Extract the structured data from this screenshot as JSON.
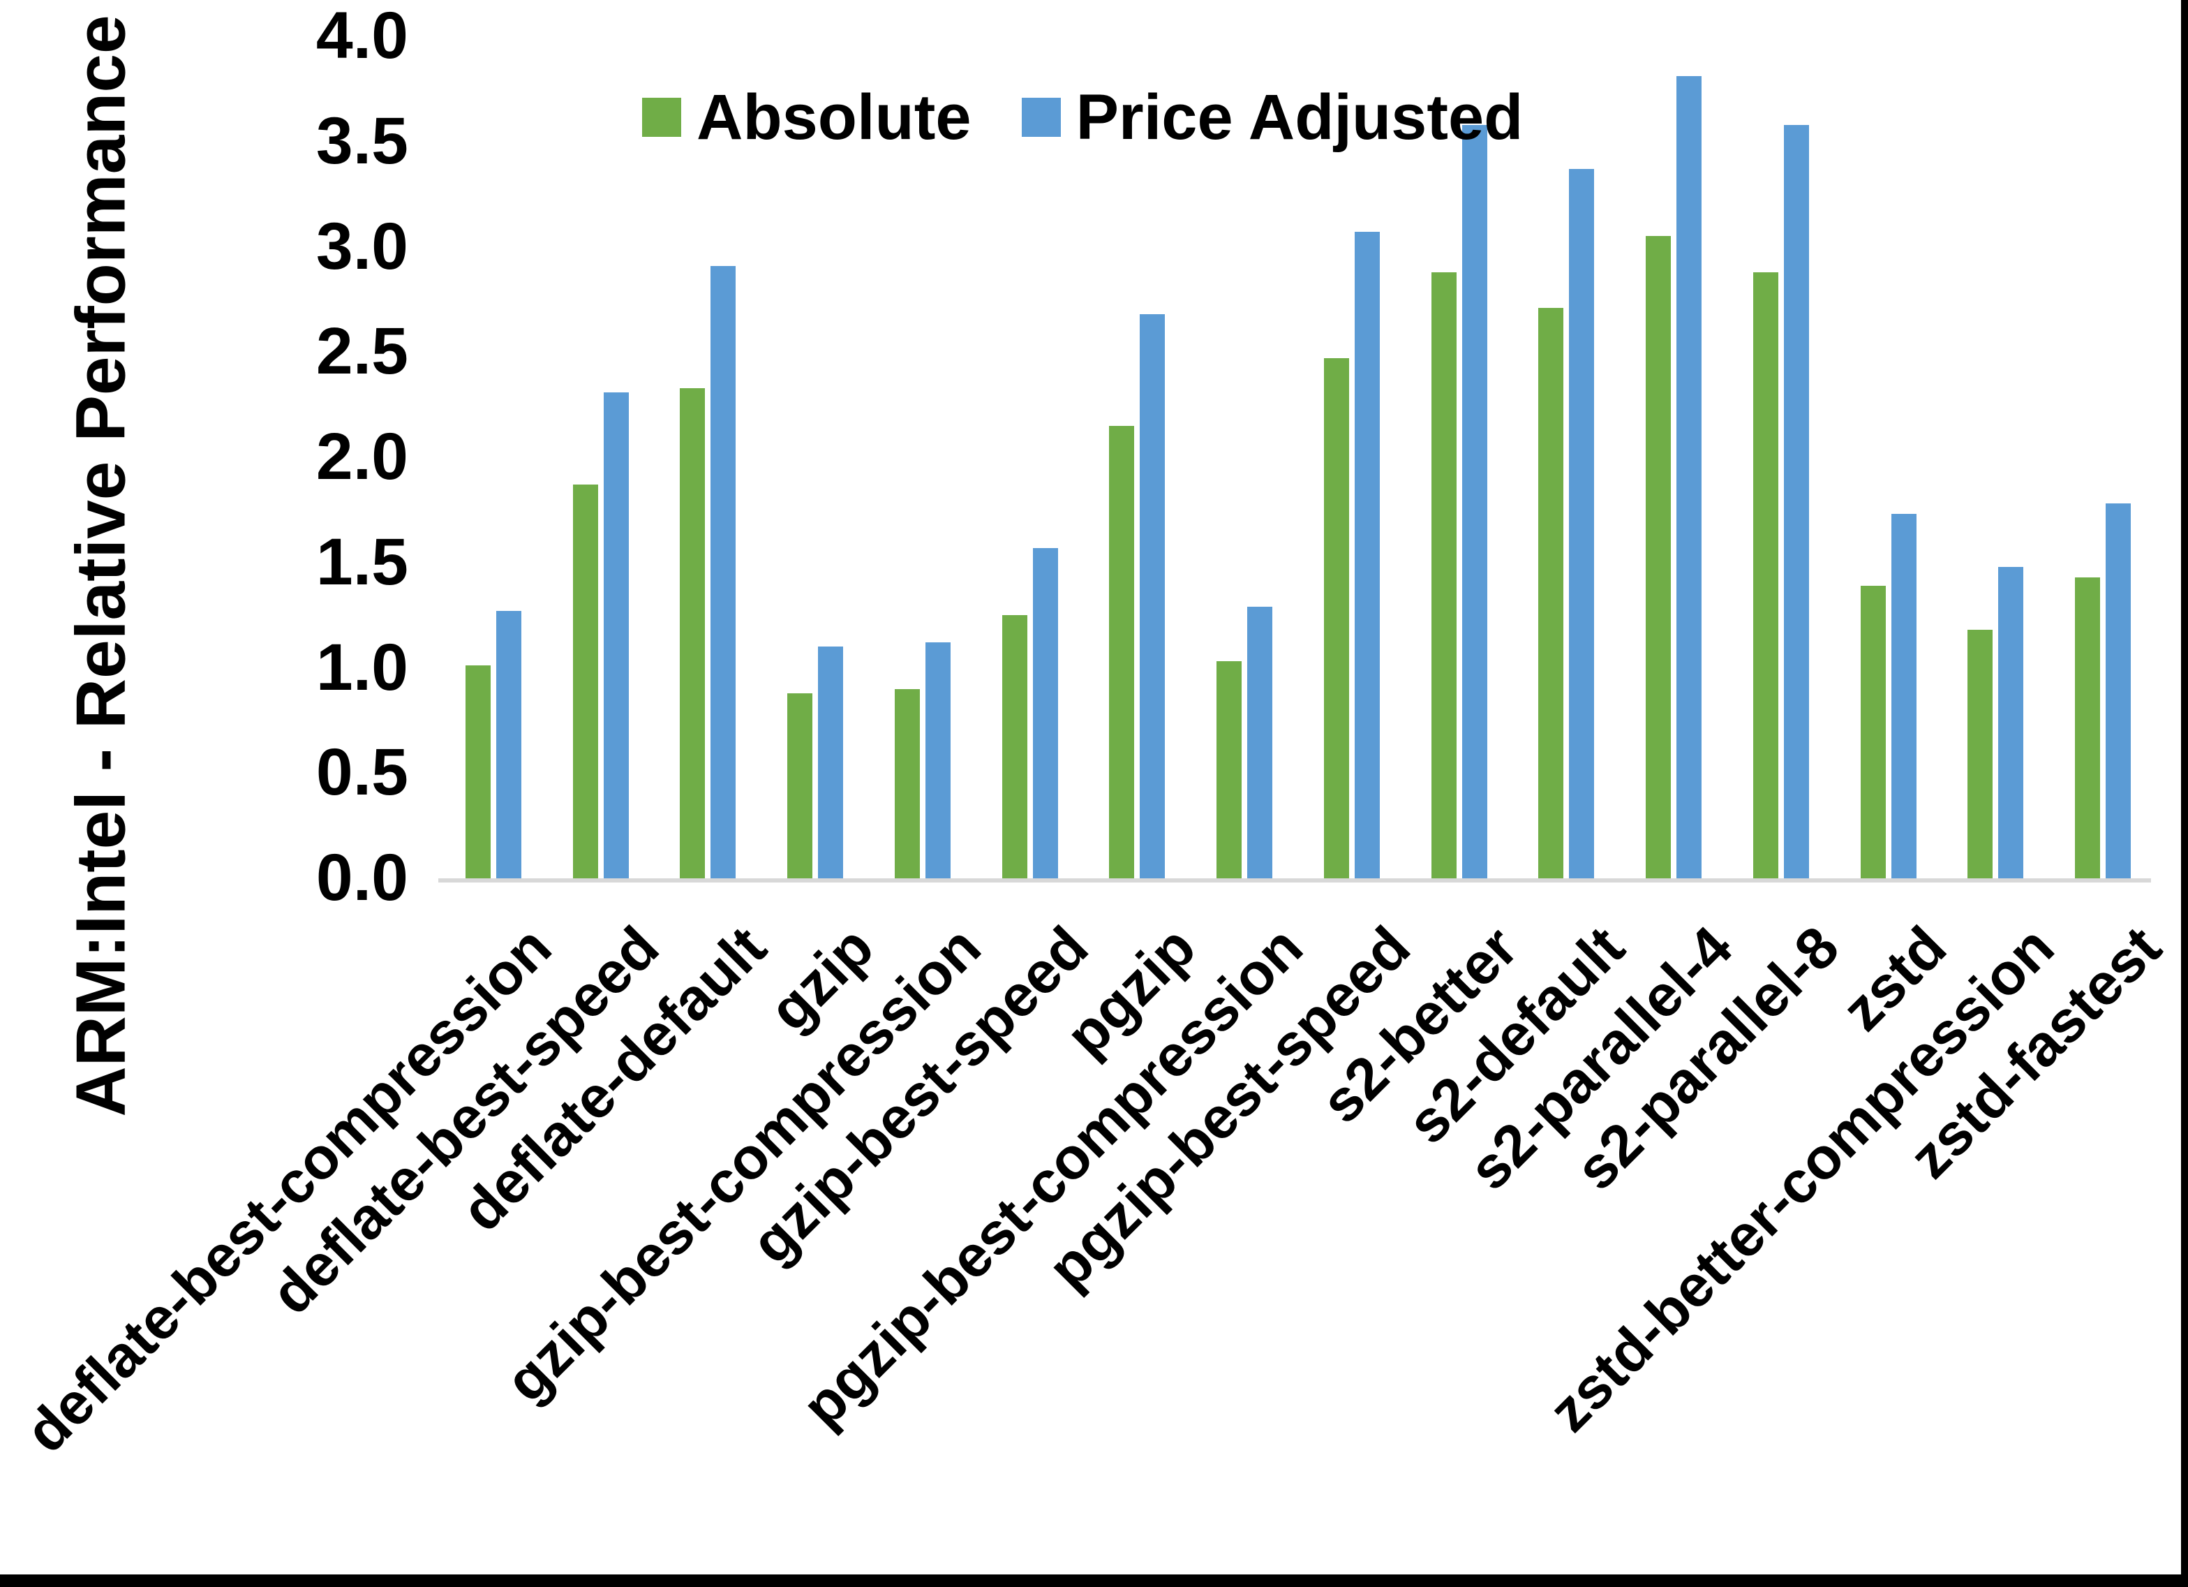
{
  "chart_data": {
    "type": "bar",
    "title": "",
    "xlabel": "",
    "ylabel": "ARM:Intel - Relative Performance",
    "ylim": [
      0.0,
      4.0
    ],
    "ytick_step": 0.5,
    "grid": false,
    "legend_position": "top-center",
    "background": "#ffffff",
    "text_color": "#000000",
    "axis_line_color": "#d8d8d8",
    "categories": [
      "deflate-best-compression",
      "deflate-best-speed",
      "deflate-default",
      "gzip",
      "gzip-best-compression",
      "gzip-best-speed",
      "pgzip",
      "pgzip-best-compression",
      "pgzip-best-speed",
      "s2-better",
      "s2-default",
      "s2-parallel-4",
      "s2-parallel-8",
      "zstd",
      "zstd-better-compression",
      "zstd-fastest"
    ],
    "series": [
      {
        "name": "Absolute",
        "color": "#70ad47",
        "values": [
          1.01,
          1.87,
          2.33,
          0.88,
          0.9,
          1.25,
          2.15,
          1.03,
          2.47,
          2.88,
          2.71,
          3.05,
          2.88,
          1.39,
          1.18,
          1.43
        ]
      },
      {
        "name": "Price Adjusted",
        "color": "#5b9bd5",
        "values": [
          1.27,
          2.31,
          2.91,
          1.1,
          1.12,
          1.57,
          2.68,
          1.29,
          3.07,
          3.58,
          3.37,
          3.81,
          3.58,
          1.73,
          1.48,
          1.78
        ]
      }
    ],
    "ytick_labels": [
      "0.0",
      "0.5",
      "1.0",
      "1.5",
      "2.0",
      "2.5",
      "3.0",
      "3.5",
      "4.0"
    ]
  },
  "frame": {
    "right_border_color": "#000000",
    "bottom_border_color": "#000000"
  }
}
